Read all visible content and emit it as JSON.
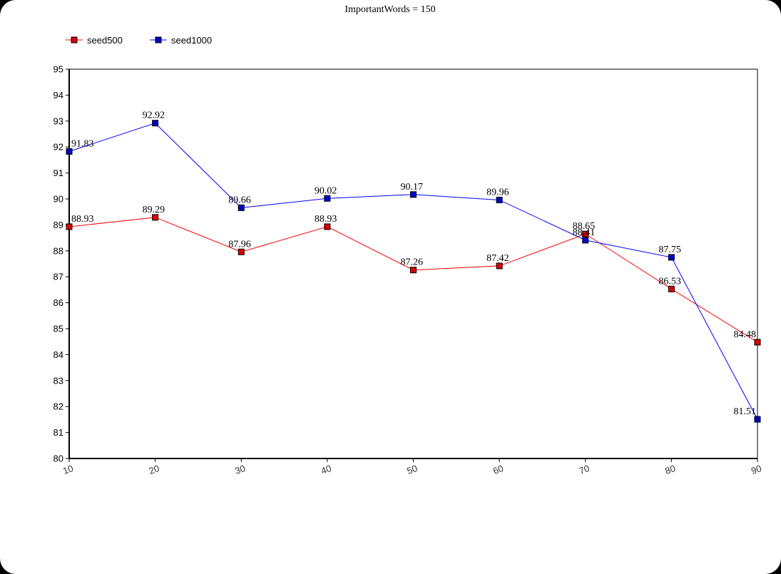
{
  "chart_data": {
    "type": "line",
    "title": "ImportantWords = 150",
    "xlabel": "",
    "ylabel": "",
    "x": [
      10,
      20,
      30,
      40,
      50,
      60,
      70,
      80,
      90
    ],
    "xlim": [
      10,
      90
    ],
    "ylim": [
      80,
      95
    ],
    "yticks": [
      80,
      81,
      82,
      83,
      84,
      85,
      86,
      87,
      88,
      89,
      90,
      91,
      92,
      93,
      94,
      95
    ],
    "grid": false,
    "legend_position": "top-left",
    "series": [
      {
        "name": "seed500",
        "color": "#ff0000",
        "marker_color": "#dd0000",
        "values": [
          88.93,
          89.29,
          87.96,
          88.93,
          87.26,
          87.42,
          88.65,
          86.53,
          84.48
        ],
        "labels": [
          "88.93",
          "89.29",
          "87.96",
          "88.93",
          "87.26",
          "87.42",
          "88.65",
          "86.53",
          "84.48"
        ]
      },
      {
        "name": "seed1000",
        "color": "#0000ff",
        "marker_color": "#0000cc",
        "values": [
          91.83,
          92.92,
          89.66,
          90.02,
          90.17,
          89.96,
          88.41,
          87.75,
          81.51
        ],
        "labels": [
          "91.83",
          "92.92",
          "89.66",
          "90.02",
          "90.17",
          "89.96",
          "88.41",
          "87.75",
          "81.51"
        ]
      }
    ]
  }
}
